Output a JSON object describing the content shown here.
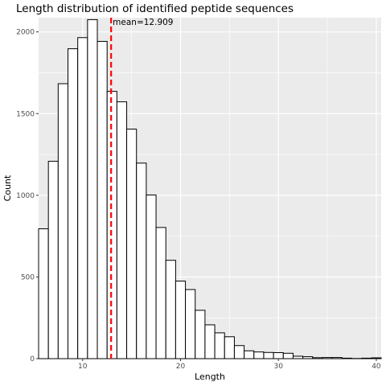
{
  "chart_data": {
    "type": "bar",
    "subtype": "histogram",
    "title": "Length distribution of identified peptide sequences",
    "xlabel": "Length",
    "ylabel": "Count",
    "xlim": [
      5.5,
      40.5
    ],
    "ylim": [
      0,
      2000
    ],
    "x_ticks": [
      10,
      20,
      30,
      40
    ],
    "y_ticks": [
      0,
      500,
      1000,
      1500,
      2000
    ],
    "bin_width": 1,
    "x": [
      6,
      7,
      8,
      9,
      10,
      11,
      12,
      13,
      14,
      15,
      16,
      17,
      18,
      19,
      20,
      21,
      22,
      23,
      24,
      25,
      26,
      27,
      28,
      29,
      30,
      31,
      32,
      33,
      34,
      35,
      36,
      37,
      38,
      39,
      40
    ],
    "values": [
      795,
      1208,
      1683,
      1897,
      1965,
      2075,
      1942,
      1636,
      1572,
      1405,
      1197,
      1002,
      803,
      602,
      475,
      423,
      296,
      207,
      158,
      134,
      80,
      48,
      41,
      38,
      37,
      33,
      15,
      12,
      6,
      7,
      7,
      3,
      1,
      3,
      5
    ],
    "mean": 12.909,
    "mean_line_color": "#ff0000",
    "annotation": "mean=12.909",
    "panel_color": "#ebebeb",
    "grid": true
  }
}
